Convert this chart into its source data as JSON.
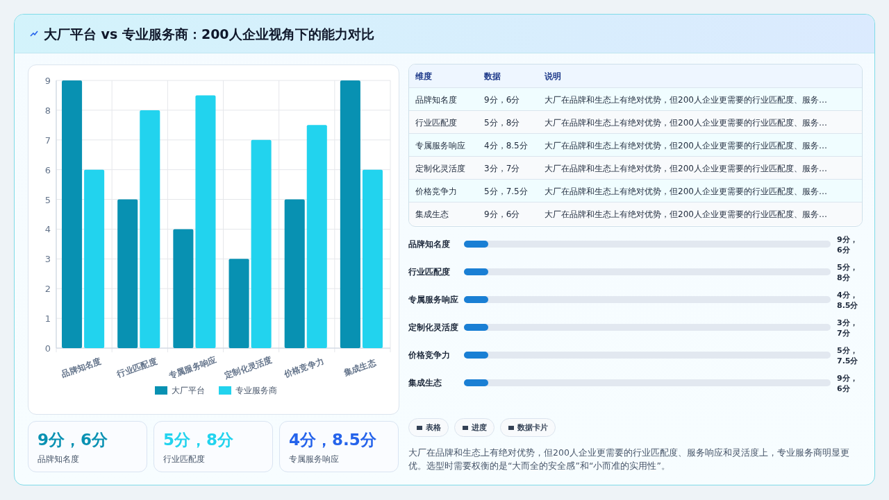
{
  "chart_data": [
    {
      "type": "bar",
      "title": "大厂平台 vs 专业服务商：200人企业视角下的能力对比",
      "categories": [
        "品牌知名度",
        "行业匹配度",
        "专属服务响应",
        "定制化灵活度",
        "价格竞争力",
        "集成生态"
      ],
      "series": [
        {
          "name": "大厂平台",
          "color": "#0891b2",
          "values": [
            9,
            5,
            4,
            3,
            5,
            9
          ]
        },
        {
          "name": "专业服务商",
          "color": "#22d3ee",
          "values": [
            6,
            8,
            8.5,
            7,
            7.5,
            6
          ]
        }
      ],
      "ylim": [
        0,
        9
      ],
      "yticks": [
        0,
        1,
        2,
        3,
        4,
        5,
        6,
        7,
        8,
        9
      ],
      "grid": true,
      "legend": "bottom"
    },
    {
      "type": "other",
      "categories": [
        "品牌知名度",
        "行业匹配度",
        "专属服务响应",
        "定制化灵活度",
        "价格竞争力",
        "集成生态"
      ],
      "value_labels": [
        "9分，6分",
        "5分，8分",
        "4分，8.5分",
        "3分，7分",
        "5分，7.5分",
        "9分，6分"
      ],
      "annotations": [
        "维度",
        "数据",
        "说明",
        "大厂在品牌和生态上有绝对优势，但200人企业更需要的行业匹配度、服务…",
        "大厂在品牌和生态上有绝对优势，但200人企业更需要的行业匹配度、服务…",
        "大厂在品牌和生态上有绝对优势，但200人企业更需要的行业匹配度、服务…",
        "大厂在品牌和生态上有绝对优势，但200人企业更需要的行业匹配度、服务…",
        "大厂在品牌和生态上有绝对优势，但200人企业更需要的行业匹配度、服务…",
        "大厂在品牌和生态上有绝对优势，但200人企业更需要的行业匹配度、服务…"
      ]
    },
    {
      "type": "other",
      "categories": [
        "品牌知名度",
        "行业匹配度",
        "专属服务响应",
        "定制化灵活度",
        "价格竞争力",
        "集成生态"
      ],
      "value_labels": [
        "9分，6分",
        "5分，8分",
        "4分，8.5分",
        "3分，7分",
        "5分，7.5分",
        "9分，6分"
      ]
    },
    {
      "type": "other",
      "categories": [
        "品牌知名度",
        "行业匹配度",
        "专属服务响应"
      ],
      "value_labels": [
        "9分，6分",
        "5分，8分",
        "4分，8.5分"
      ]
    },
    {
      "type": "other",
      "annotations": [
        "表格",
        "进度",
        "数据卡片",
        "大厂在品牌和生态上有绝对优势，但200人企业更需要的行业匹配度、服务响应和灵活度上，专业服务商明显更优。选型时需要权衡的是“大而全的安全感”和“小而准的实用性”。"
      ]
    }
  ]
}
